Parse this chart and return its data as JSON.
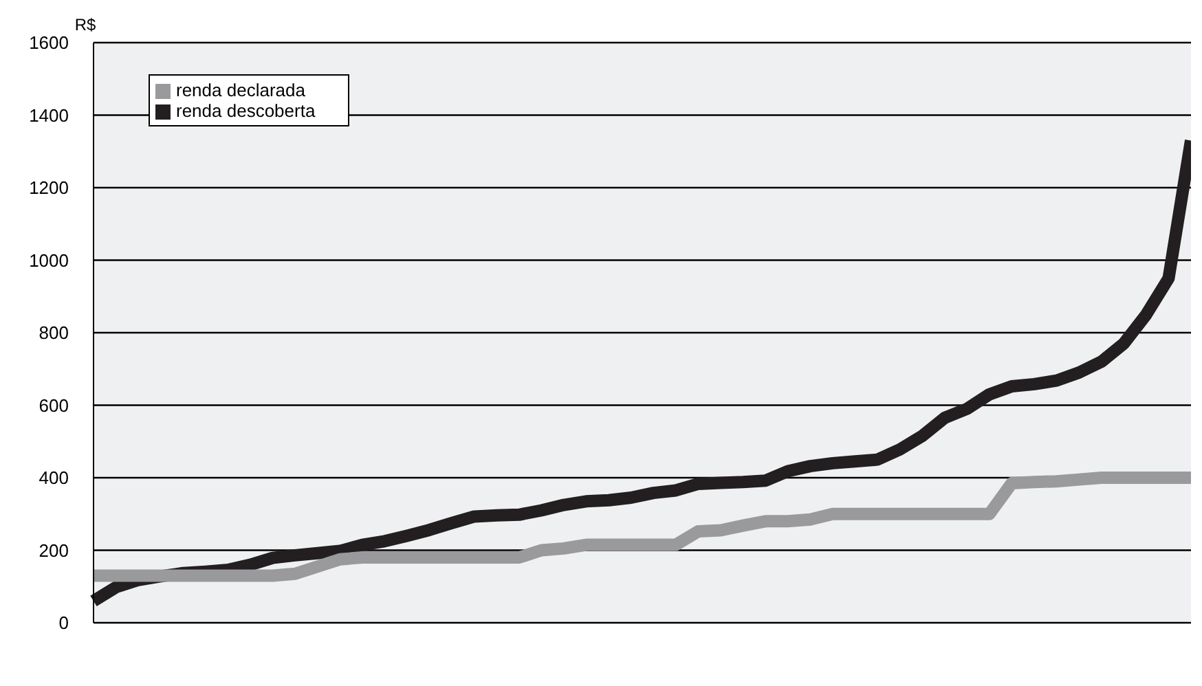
{
  "chart_data": {
    "type": "line",
    "ylabel": "R$",
    "categories": [
      null,
      null,
      null,
      null,
      null,
      null,
      null,
      null,
      null,
      null,
      null,
      null,
      null,
      null,
      null,
      null,
      null,
      null,
      null,
      null,
      null,
      null,
      null,
      null,
      null,
      null,
      null,
      null,
      null,
      null,
      null,
      null,
      null,
      null,
      null,
      null,
      null,
      null,
      null,
      null,
      null,
      null,
      null,
      null,
      null,
      null,
      null,
      null,
      null,
      null
    ],
    "series": [
      {
        "name": "renda descoberta",
        "color": "#231f20",
        "values": [
          60,
          98,
          118,
          128,
          137,
          141,
          146,
          160,
          179,
          186,
          192,
          198,
          215,
          225,
          240,
          256,
          275,
          293,
          296,
          298,
          310,
          325,
          335,
          338,
          345,
          358,
          365,
          383,
          386,
          388,
          392,
          418,
          432,
          440,
          445,
          450,
          478,
          515,
          565,
          590,
          630,
          652,
          658,
          668,
          690,
          720,
          770,
          850,
          950,
          1330
        ]
      },
      {
        "name": "renda declarada",
        "color": "#9a9a9c",
        "values": [
          130,
          130,
          130,
          130,
          130,
          130,
          130,
          130,
          130,
          135,
          155,
          175,
          180,
          180,
          180,
          180,
          180,
          180,
          180,
          180,
          200,
          205,
          215,
          215,
          215,
          215,
          215,
          252,
          255,
          268,
          280,
          280,
          285,
          300,
          300,
          300,
          300,
          300,
          300,
          300,
          300,
          385,
          388,
          390,
          395,
          400,
          400,
          400,
          400,
          400
        ]
      }
    ],
    "ylim": [
      0,
      1600
    ],
    "yticks": [
      0,
      200,
      400,
      600,
      800,
      1000,
      1200,
      1400,
      1600
    ],
    "grid": "y",
    "legend": "top left",
    "marker": "none",
    "line_style": "solid"
  }
}
